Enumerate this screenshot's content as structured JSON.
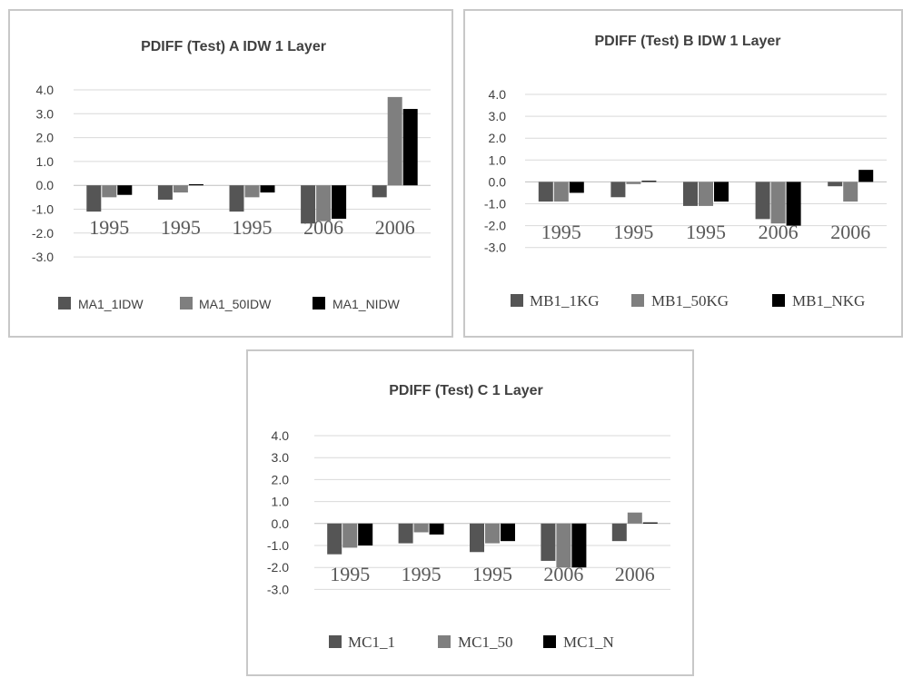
{
  "chart_data": [
    {
      "type": "bar",
      "title": "PDIFF (Test)  A IDW 1 Layer",
      "categories": [
        "1995",
        "1995",
        "1995",
        "2006",
        "2006"
      ],
      "series": [
        {
          "name": "MA1_1IDW",
          "values": [
            -1.1,
            -0.6,
            -1.1,
            -1.6,
            -0.5
          ]
        },
        {
          "name": "MA1_50IDW",
          "values": [
            -0.5,
            -0.3,
            -0.5,
            -1.5,
            3.7
          ]
        },
        {
          "name": "MA1_NIDW",
          "values": [
            -0.4,
            0.0,
            -0.3,
            -1.4,
            3.2
          ]
        }
      ],
      "yticks": [
        "4.0",
        "3.0",
        "2.0",
        "1.0",
        "0.0",
        "-1.0",
        "-2.0",
        "-3.0"
      ],
      "ylim": [
        -3,
        4
      ],
      "grid": true,
      "legend": "bottom",
      "colors": [
        "#555555",
        "#7f7f7f",
        "#000000"
      ]
    },
    {
      "type": "bar",
      "title": "PDIFF (Test)  B IDW 1 Layer",
      "categories": [
        "1995",
        "1995",
        "1995",
        "2006",
        "2006"
      ],
      "series": [
        {
          "name": "MB1_1KG",
          "values": [
            -0.9,
            -0.7,
            -1.1,
            -1.7,
            -0.2
          ]
        },
        {
          "name": "MB1_50KG",
          "values": [
            -0.9,
            -0.1,
            -1.1,
            -1.9,
            -0.9
          ]
        },
        {
          "name": "MB1_NKG",
          "values": [
            -0.5,
            0.05,
            -0.9,
            -2.0,
            0.55
          ]
        }
      ],
      "yticks": [
        "4.0",
        "3.0",
        "2.0",
        "1.0",
        "0.0",
        "-1.0",
        "-2.0",
        "-3.0"
      ],
      "ylim": [
        -3,
        4
      ],
      "grid": true,
      "legend": "bottom",
      "colors": [
        "#555555",
        "#7f7f7f",
        "#000000"
      ]
    },
    {
      "type": "bar",
      "title": "PDIFF (Test)  C 1  Layer",
      "categories": [
        "1995",
        "1995",
        "1995",
        "2006",
        "2006"
      ],
      "series": [
        {
          "name": "MC1_1",
          "values": [
            -1.4,
            -0.9,
            -1.3,
            -1.7,
            -0.8
          ]
        },
        {
          "name": "MC1_50",
          "values": [
            -1.1,
            -0.4,
            -0.9,
            -2.0,
            0.5
          ]
        },
        {
          "name": "MC1_N",
          "values": [
            -1.0,
            -0.5,
            -0.8,
            -2.0,
            0.05
          ]
        }
      ],
      "yticks": [
        "4.0",
        "3.0",
        "2.0",
        "1.0",
        "0.0",
        "-1.0",
        "-2.0",
        "-3.0"
      ],
      "ylim": [
        -3,
        4
      ],
      "grid": true,
      "legend": "bottom",
      "colors": [
        "#555555",
        "#7f7f7f",
        "#000000"
      ]
    }
  ]
}
